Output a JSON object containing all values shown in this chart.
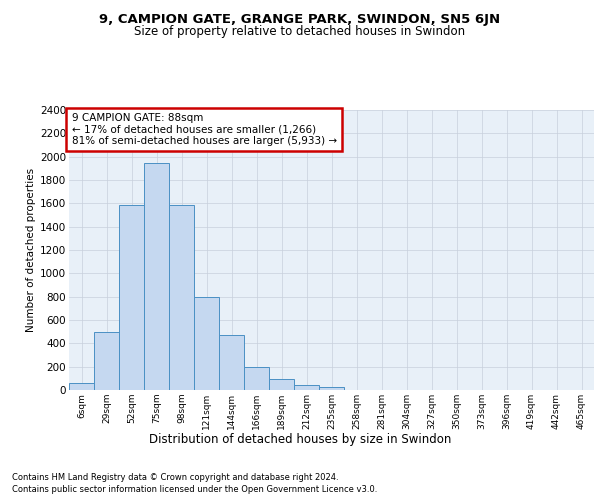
{
  "title1": "9, CAMPION GATE, GRANGE PARK, SWINDON, SN5 6JN",
  "title2": "Size of property relative to detached houses in Swindon",
  "xlabel": "Distribution of detached houses by size in Swindon",
  "ylabel": "Number of detached properties",
  "categories": [
    "6sqm",
    "29sqm",
    "52sqm",
    "75sqm",
    "98sqm",
    "121sqm",
    "144sqm",
    "166sqm",
    "189sqm",
    "212sqm",
    "235sqm",
    "258sqm",
    "281sqm",
    "304sqm",
    "327sqm",
    "350sqm",
    "373sqm",
    "396sqm",
    "419sqm",
    "442sqm",
    "465sqm"
  ],
  "values": [
    60,
    500,
    1590,
    1950,
    1590,
    800,
    470,
    195,
    95,
    40,
    25,
    0,
    0,
    0,
    0,
    0,
    0,
    0,
    0,
    0,
    0
  ],
  "bar_color": "#c5d8f0",
  "bar_edge_color": "#4a90c4",
  "annotation_box_text": "9 CAMPION GATE: 88sqm\n← 17% of detached houses are smaller (1,266)\n81% of semi-detached houses are larger (5,933) →",
  "annotation_box_color": "#ffffff",
  "annotation_box_edge_color": "#cc0000",
  "ylim": [
    0,
    2400
  ],
  "yticks": [
    0,
    200,
    400,
    600,
    800,
    1000,
    1200,
    1400,
    1600,
    1800,
    2000,
    2200,
    2400
  ],
  "grid_color": "#c8d0dc",
  "bg_color": "#e8f0f8",
  "footnote1": "Contains HM Land Registry data © Crown copyright and database right 2024.",
  "footnote2": "Contains public sector information licensed under the Open Government Licence v3.0."
}
